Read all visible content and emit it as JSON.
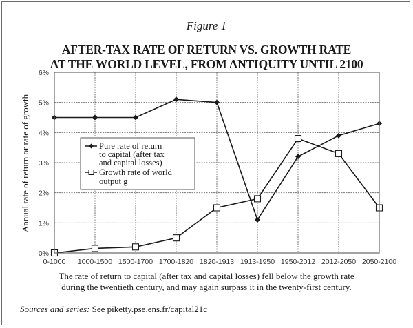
{
  "figure_label": "Figure 1",
  "title_lines": [
    "AFTER-TAX RATE OF RETURN VS. GROWTH RATE",
    "AT THE WORLD LEVEL, FROM ANTIQUITY UNTIL 2100"
  ],
  "caption_lines": [
    "The rate of return to capital (after tax and capital losses) fell below the growth rate",
    "during the twentieth century, and may again surpass it in the twenty-first century."
  ],
  "sources": {
    "label": "Sources and series:",
    "text": " See piketty.pse.ens.fr/capital21c"
  },
  "chart_data": {
    "type": "line",
    "title": "AFTER-TAX RATE OF RETURN VS. GROWTH RATE AT THE WORLD LEVEL, FROM ANTIQUITY UNTIL 2100",
    "xlabel": "",
    "ylabel": "Annual rate of return or rate of growth",
    "categories": [
      "0-1000",
      "1000-1500",
      "1500-1700",
      "1700-1820",
      "1820-1913",
      "1913-1950",
      "1950-2012",
      "2012-2050",
      "2050-2100"
    ],
    "ylim": [
      0,
      6
    ],
    "yticks": [
      0,
      1,
      2,
      3,
      4,
      5,
      6
    ],
    "ytick_labels": [
      "0%",
      "1%",
      "2%",
      "3%",
      "4%",
      "5%",
      "6%"
    ],
    "grid": true,
    "legend_position": "center-left",
    "series": [
      {
        "name": "Pure rate of return to capital (after tax and capital losses)",
        "legend_lines": [
          "Pure rate of return",
          "to capital (after tax",
          "and capital losses)"
        ],
        "marker": "filled-diamond",
        "values": [
          4.5,
          4.5,
          4.5,
          5.1,
          5.0,
          1.1,
          3.2,
          3.9,
          4.3
        ]
      },
      {
        "name": "Growth rate of world output g",
        "legend_lines": [
          "Growth rate of world",
          "output g"
        ],
        "marker": "open-square",
        "values": [
          0.0,
          0.15,
          0.2,
          0.5,
          1.5,
          1.8,
          3.8,
          3.3,
          1.5
        ]
      }
    ]
  }
}
